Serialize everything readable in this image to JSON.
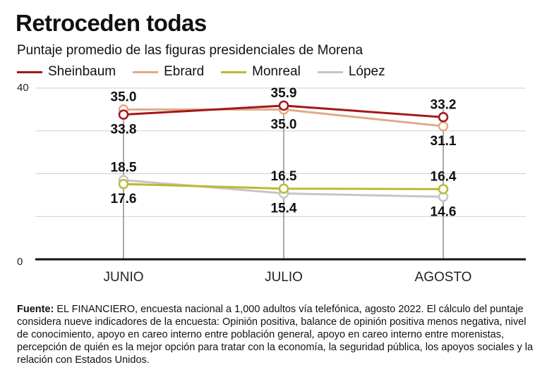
{
  "title": "Retroceden todas",
  "subtitle": "Puntaje promedio de las figuras presidenciales de Morena",
  "source": {
    "label": "Fuente:",
    "text": " EL FINANCIERO, encuesta nacional a 1,000 adultos vía telefónica, agosto 2022. El cálculo del puntaje considera nueve indicadores de la encuesta: Opinión positiva, balance de opinión positiva menos negativa, nivel de conocimiento, apoyo en careo interno entre población general, apoyo en careo interno entre morenistas, percepción de quién es la mejor opción para tratar con la economía, la seguridad pública, los apoyos sociales y la relación con Estados Unidos."
  },
  "chart_data": {
    "type": "line",
    "categories": [
      "JUNIO",
      "JULIO",
      "AGOSTO"
    ],
    "ylim": [
      0,
      40
    ],
    "yticks": [
      0,
      40
    ],
    "grid": true,
    "legend_position": "top-left",
    "series": [
      {
        "name": "Sheinbaum",
        "color": "#a4161a",
        "values": [
          33.8,
          35.9,
          33.2
        ],
        "labels": [
          "33.8",
          "35.9",
          "33.2"
        ],
        "label_side": [
          "below",
          "above",
          "above"
        ]
      },
      {
        "name": "Ebrard",
        "color": "#e0aa86",
        "values": [
          35.0,
          35.0,
          31.1
        ],
        "labels": [
          "35.0",
          "35.0",
          "31.1"
        ],
        "label_side": [
          "above",
          "below",
          "below"
        ]
      },
      {
        "name": "Monreal",
        "color": "#bdb832",
        "values": [
          17.6,
          16.5,
          16.4
        ],
        "labels": [
          "17.6",
          "16.5",
          "16.4"
        ],
        "label_side": [
          "below",
          "above",
          "above"
        ]
      },
      {
        "name": "López",
        "color": "#c5c5c5",
        "values": [
          18.5,
          15.4,
          14.6
        ],
        "labels": [
          "18.5",
          "15.4",
          "14.6"
        ],
        "label_side": [
          "above",
          "below",
          "below"
        ]
      }
    ]
  }
}
